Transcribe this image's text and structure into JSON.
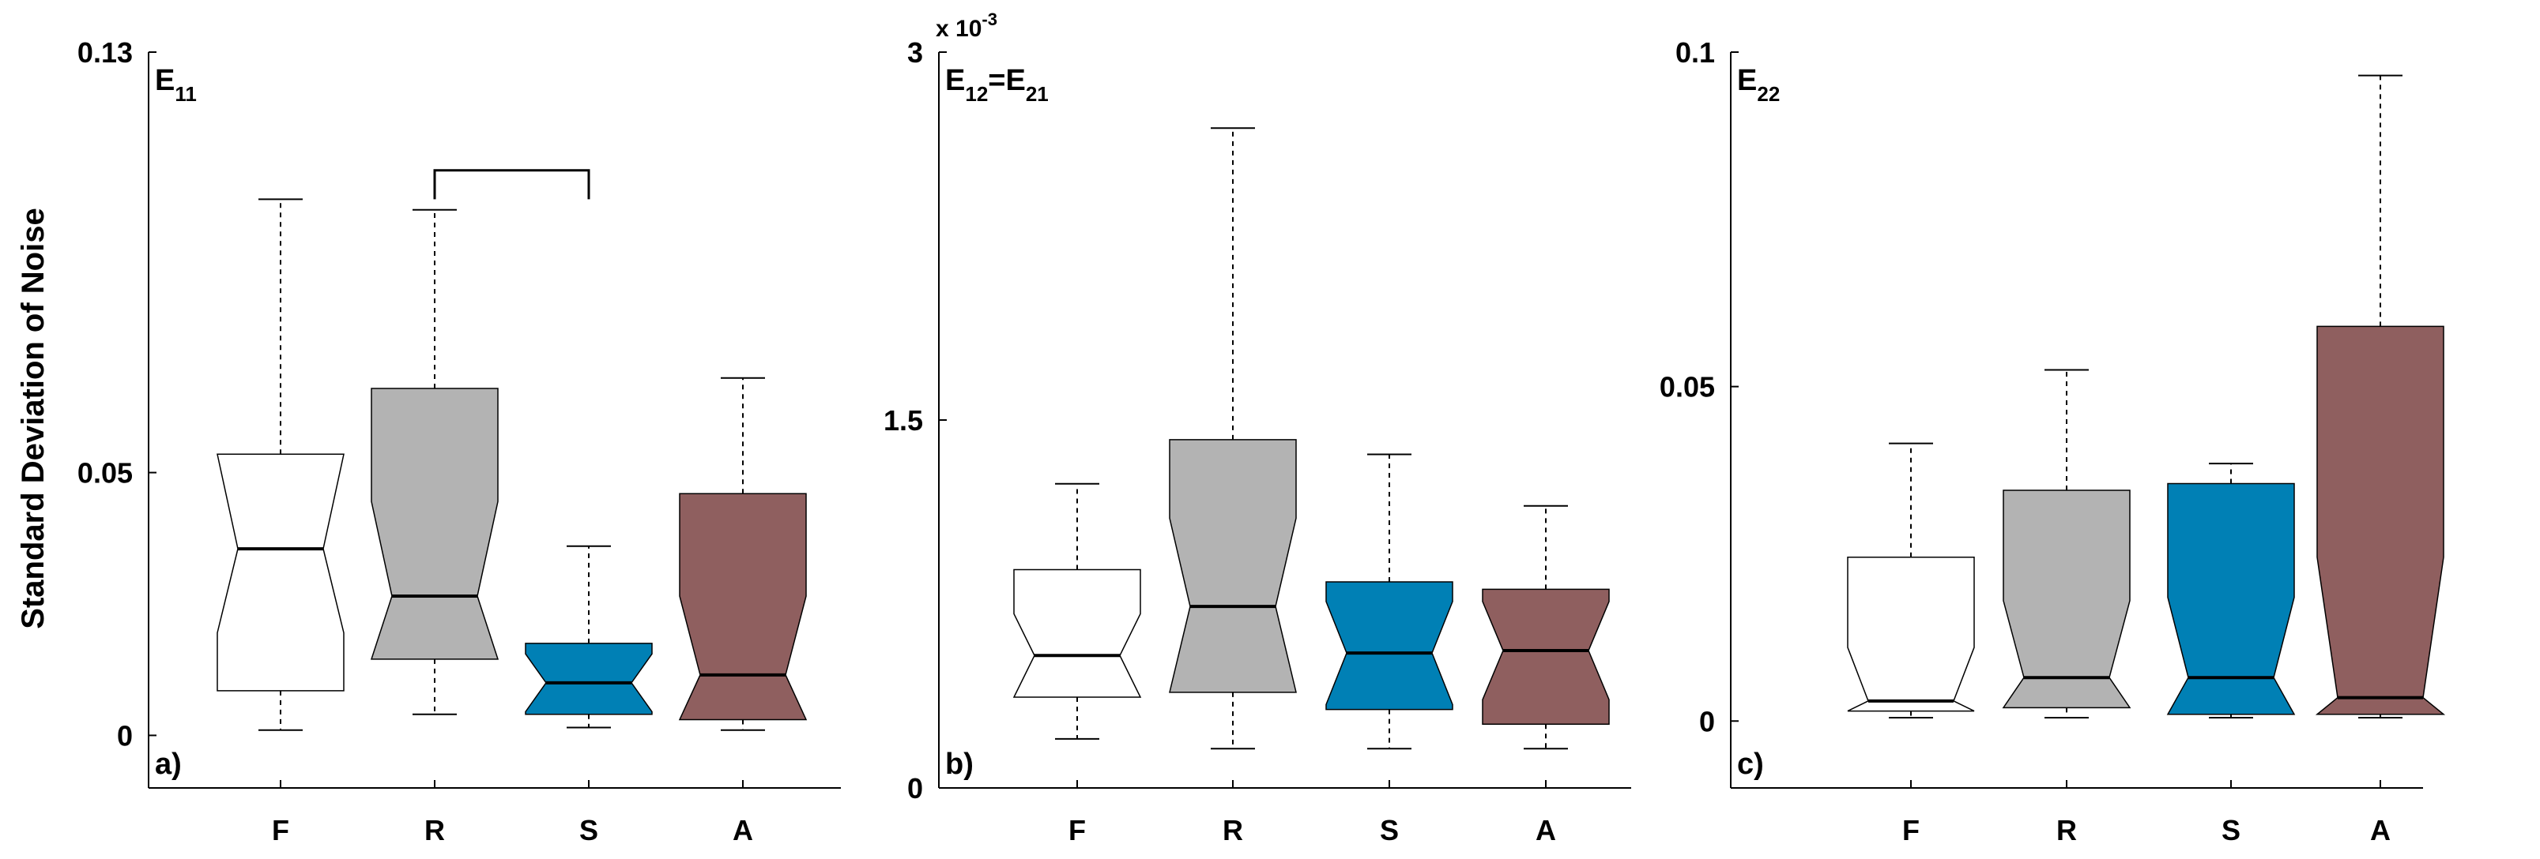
{
  "ylabel": "Standard Deviation of Noise",
  "colors": {
    "F": "#ffffff",
    "R": "#b3b3b3",
    "S": "#0080b5",
    "A": "#8f5f5f"
  },
  "chart_data": [
    {
      "type": "box",
      "title_main": "E",
      "title_sub": "11",
      "panel_label": "a)",
      "categories": [
        "F",
        "R",
        "S",
        "A"
      ],
      "ylim": [
        -0.01,
        0.13
      ],
      "yticks": [
        0,
        0.05,
        0.13
      ],
      "ytick_labels": [
        "0",
        "0.05",
        "0.13"
      ],
      "exponent_label": "",
      "boxes": [
        {
          "category": "F",
          "whisker_low": 0.001,
          "q1": 0.0085,
          "median": 0.0355,
          "q3": 0.0535,
          "whisker_high": 0.102,
          "notch_low": 0.0195,
          "notch_high": 0.0535
        },
        {
          "category": "R",
          "whisker_low": 0.004,
          "q1": 0.0145,
          "median": 0.0265,
          "q3": 0.066,
          "whisker_high": 0.1,
          "notch_low": 0.0145,
          "notch_high": 0.0445
        },
        {
          "category": "S",
          "whisker_low": 0.0015,
          "q1": 0.004,
          "median": 0.01,
          "q3": 0.0175,
          "whisker_high": 0.036,
          "notch_low": 0.0045,
          "notch_high": 0.0155
        },
        {
          "category": "A",
          "whisker_low": 0.001,
          "q1": 0.003,
          "median": 0.0115,
          "q3": 0.046,
          "whisker_high": 0.068,
          "notch_low": 0.003,
          "notch_high": 0.0265
        }
      ],
      "significance": [
        {
          "from": "R",
          "to": "S",
          "y": 0.1075,
          "drop": 0.0055
        }
      ]
    },
    {
      "type": "box",
      "title_main": "E",
      "title_sub": "12",
      "title_eq": "=E",
      "title_sub2": "21",
      "panel_label": "b)",
      "categories": [
        "F",
        "R",
        "S",
        "A"
      ],
      "ylim": [
        0,
        0.003
      ],
      "yticks": [
        0,
        0.0015,
        0.003
      ],
      "ytick_labels": [
        "0",
        "1.5",
        "3"
      ],
      "exponent_label": "x 10",
      "exponent_power": "-3",
      "boxes": [
        {
          "category": "F",
          "whisker_low": 0.0002,
          "q1": 0.00037,
          "median": 0.00054,
          "q3": 0.00089,
          "whisker_high": 0.00124,
          "notch_low": 0.00037,
          "notch_high": 0.00071
        },
        {
          "category": "R",
          "whisker_low": 0.00016,
          "q1": 0.00039,
          "median": 0.00074,
          "q3": 0.00142,
          "whisker_high": 0.00269,
          "notch_low": 0.00039,
          "notch_high": 0.0011
        },
        {
          "category": "S",
          "whisker_low": 0.00016,
          "q1": 0.00032,
          "median": 0.00055,
          "q3": 0.00084,
          "whisker_high": 0.00136,
          "notch_low": 0.00034,
          "notch_high": 0.00076
        },
        {
          "category": "A",
          "whisker_low": 0.00016,
          "q1": 0.00026,
          "median": 0.00056,
          "q3": 0.00081,
          "whisker_high": 0.00115,
          "notch_low": 0.00036,
          "notch_high": 0.00076
        }
      ],
      "significance": []
    },
    {
      "type": "box",
      "title_main": "E",
      "title_sub": "22",
      "panel_label": "c)",
      "categories": [
        "F",
        "R",
        "S",
        "A"
      ],
      "ylim": [
        -0.01,
        0.1
      ],
      "yticks": [
        0,
        0.05,
        0.1
      ],
      "ytick_labels": [
        "0",
        "0.05",
        "0.1"
      ],
      "exponent_label": "",
      "boxes": [
        {
          "category": "F",
          "whisker_low": 0.0005,
          "q1": 0.0015,
          "median": 0.003,
          "q3": 0.0245,
          "whisker_high": 0.0415,
          "notch_low": 0.0015,
          "notch_high": 0.011
        },
        {
          "category": "R",
          "whisker_low": 0.0005,
          "q1": 0.002,
          "median": 0.0065,
          "q3": 0.0345,
          "whisker_high": 0.0525,
          "notch_low": 0.002,
          "notch_high": 0.018
        },
        {
          "category": "S",
          "whisker_low": 0.0005,
          "q1": 0.001,
          "median": 0.0065,
          "q3": 0.0355,
          "whisker_high": 0.0385,
          "notch_low": 0.001,
          "notch_high": 0.0185
        },
        {
          "category": "A",
          "whisker_low": 0.0005,
          "q1": 0.001,
          "median": 0.0035,
          "q3": 0.059,
          "whisker_high": 0.0965,
          "notch_low": 0.001,
          "notch_high": 0.0245
        }
      ],
      "significance": []
    }
  ]
}
